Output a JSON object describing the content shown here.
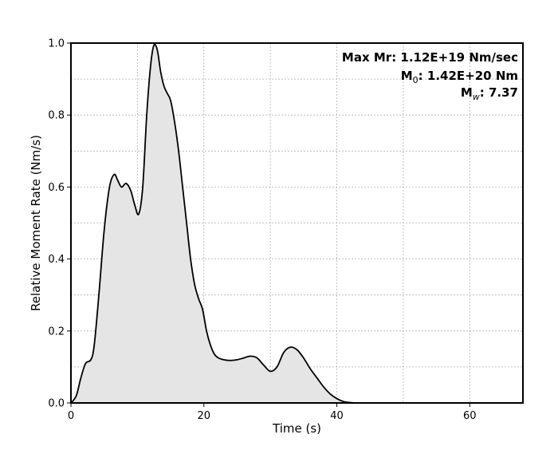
{
  "chart_data": {
    "type": "area",
    "title": "",
    "xlabel": "Time (s)",
    "ylabel": "Relative Moment Rate (Nm/s)",
    "xlim": [
      0,
      68
    ],
    "ylim": [
      0,
      1.0
    ],
    "xticks": [
      0,
      20,
      40,
      60
    ],
    "yticks": [
      0.0,
      0.2,
      0.4,
      0.6,
      0.8,
      1.0
    ],
    "xtick_labels": [
      "0",
      "20",
      "40",
      "60"
    ],
    "ytick_labels": [
      "0.0",
      "0.2",
      "0.4",
      "0.6",
      "0.8",
      "1.0"
    ],
    "grid": true,
    "fill_color": "#e5e5e5",
    "line_color": "#000000",
    "annotations": {
      "max_mr": "Max Mr: 1.12E+19 Nm/sec",
      "m0_prefix": "M",
      "m0_sub": "0",
      "m0_rest": ": 1.42E+20 Nm",
      "mw_prefix": "M",
      "mw_sub": "w",
      "mw_rest": ": 7.37"
    },
    "series": [
      {
        "x": [
          0,
          0.8,
          1.5,
          2.2,
          3.0,
          3.5,
          4.2,
          5.0,
          5.8,
          6.5,
          7.0,
          7.6,
          8.3,
          9.0,
          9.6,
          10.2,
          10.8,
          11.4,
          12.0,
          12.5,
          13.0,
          13.5,
          14.0,
          14.5,
          15.0,
          15.6,
          16.2,
          16.8,
          17.4,
          18.0,
          18.6,
          19.2,
          19.8,
          20.4,
          21.0,
          21.6,
          22.2,
          23.0,
          24.0,
          25.0,
          26.0,
          27.0,
          28.0,
          29.0,
          30.0,
          31.0,
          32.0,
          33.0,
          34.0,
          35.0,
          36.0,
          37.0,
          38.0,
          39.0,
          40.0,
          41.0,
          42.0,
          43.0,
          44.0,
          45.0,
          50.0,
          55.0,
          60.0,
          65.0,
          68.0
        ],
        "y": [
          0.0,
          0.02,
          0.07,
          0.11,
          0.12,
          0.16,
          0.3,
          0.48,
          0.6,
          0.635,
          0.62,
          0.6,
          0.61,
          0.59,
          0.55,
          0.525,
          0.6,
          0.8,
          0.94,
          0.995,
          0.98,
          0.92,
          0.88,
          0.86,
          0.84,
          0.78,
          0.7,
          0.6,
          0.5,
          0.4,
          0.33,
          0.29,
          0.26,
          0.2,
          0.16,
          0.135,
          0.125,
          0.12,
          0.118,
          0.12,
          0.125,
          0.13,
          0.125,
          0.105,
          0.088,
          0.1,
          0.14,
          0.155,
          0.148,
          0.125,
          0.095,
          0.07,
          0.045,
          0.025,
          0.012,
          0.004,
          0.001,
          0.0,
          0.0,
          0.0,
          0.0,
          0.0,
          0.0,
          0.0,
          0.0
        ]
      }
    ]
  }
}
